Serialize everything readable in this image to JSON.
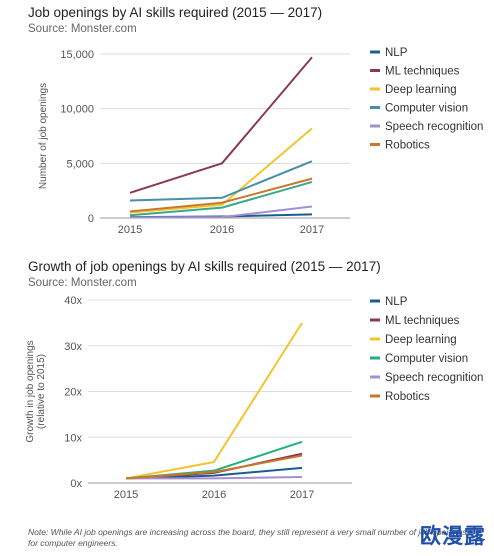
{
  "chart_data": [
    {
      "type": "line",
      "title": "Job openings by AI skills required (2015 — 2017)",
      "subtitle": "Source: Monster.com",
      "ylabel": "Number of job openings",
      "xlabel": "",
      "x": [
        "2015",
        "2016",
        "2017"
      ],
      "ylim": [
        0,
        15000
      ],
      "yticks": [
        {
          "value": 0,
          "label": "0"
        },
        {
          "value": 5000,
          "label": "5,000"
        },
        {
          "value": 10000,
          "label": "10,000"
        },
        {
          "value": 15000,
          "label": "15,000"
        }
      ],
      "grid": true,
      "legend_position": "right",
      "series": [
        {
          "name": "NLP",
          "color": "#1a5d8f",
          "values": [
            80,
            140,
            330
          ]
        },
        {
          "name": "ML techniques",
          "color": "#8c3a4a",
          "values": [
            2300,
            5000,
            14700
          ]
        },
        {
          "name": "Deep learning",
          "color": "#f2c530",
          "values": [
            500,
            1200,
            8200
          ]
        },
        {
          "name": "Computer vision",
          "color": "#4a8fa8",
          "values": [
            1600,
            1850,
            5200
          ]
        },
        {
          "name": "Speech recognition",
          "color": "#a48fcf",
          "values": [
            50,
            80,
            1050
          ]
        },
        {
          "name": "Robotics",
          "color": "#c7782a",
          "values": [
            600,
            1400,
            3600
          ]
        }
      ],
      "extra_series": [
        {
          "color": "#3aa88a",
          "values": [
            250,
            950,
            3300
          ]
        }
      ]
    },
    {
      "type": "line",
      "title": "Growth of job openings by AI skills required (2015 — 2017)",
      "subtitle": "Source: Monster.com",
      "ylabel": "Growth in job openings",
      "ylabel2": "(relative to 2015)",
      "xlabel": "",
      "x": [
        "2015",
        "2016",
        "2017"
      ],
      "ylim": [
        0,
        40
      ],
      "yticks": [
        {
          "value": 0,
          "label": "0x"
        },
        {
          "value": 10,
          "label": "10x"
        },
        {
          "value": 20,
          "label": "20x"
        },
        {
          "value": 30,
          "label": "30x"
        },
        {
          "value": 40,
          "label": "40x"
        }
      ],
      "grid": true,
      "legend_position": "right",
      "series": [
        {
          "name": "NLP",
          "color": "#1a5d8f",
          "values": [
            1,
            1.6,
            3.3
          ]
        },
        {
          "name": "ML techniques",
          "color": "#8c3a4a",
          "values": [
            1,
            2.2,
            6.4
          ]
        },
        {
          "name": "Deep learning",
          "color": "#f2c530",
          "values": [
            1,
            4.6,
            35
          ]
        },
        {
          "name": "Computer vision",
          "color": "#23b07a",
          "values": [
            1,
            2.7,
            9
          ]
        },
        {
          "name": "Speech recognition",
          "color": "#a48fcf",
          "values": [
            1,
            1.0,
            1.3
          ]
        },
        {
          "name": "Robotics",
          "color": "#c7782a",
          "values": [
            1,
            2.4,
            6.0
          ]
        }
      ]
    }
  ],
  "note": "Note: While AI job openings are increasing across the board, they still represent a very small number of job openings for computer engineers.",
  "watermark": "欧漫露"
}
